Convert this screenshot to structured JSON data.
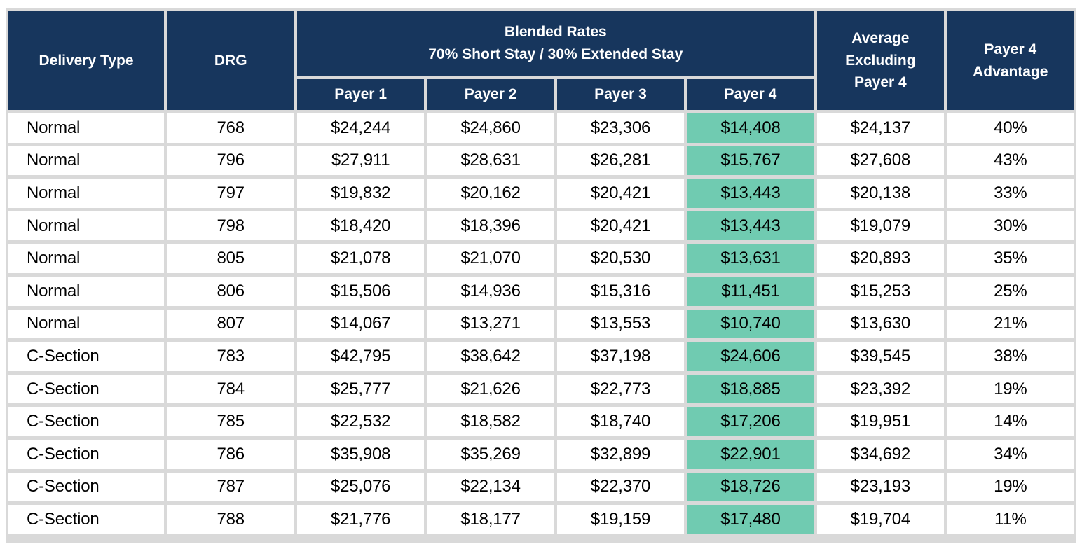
{
  "colors": {
    "header_bg": "#17365D",
    "header_text": "#FFFFFF",
    "payer4_highlight_bg": "#70CBB1",
    "grid_line": "#D9D9D9",
    "cell_bg": "#FFFFFF",
    "cell_text": "#000000"
  },
  "header": {
    "delivery_type": "Delivery Type",
    "drg": "DRG",
    "blended_title": "Blended Rates",
    "blended_subtitle": "70% Short Stay / 30% Extended Stay",
    "payer1": "Payer 1",
    "payer2": "Payer 2",
    "payer3": "Payer 3",
    "payer4": "Payer 4",
    "avg_excluding": "Average Excluding Payer 4",
    "advantage": "Payer 4 Advantage"
  },
  "table": {
    "rows": [
      [
        "Normal",
        "768",
        "$24,244",
        "$24,860",
        "$23,306",
        "$14,408",
        "$24,137",
        "40%"
      ],
      [
        "Normal",
        "796",
        "$27,911",
        "$28,631",
        "$26,281",
        "$15,767",
        "$27,608",
        "43%"
      ],
      [
        "Normal",
        "797",
        "$19,832",
        "$20,162",
        "$20,421",
        "$13,443",
        "$20,138",
        "33%"
      ],
      [
        "Normal",
        "798",
        "$18,420",
        "$18,396",
        "$20,421",
        "$13,443",
        "$19,079",
        "30%"
      ],
      [
        "Normal",
        "805",
        "$21,078",
        "$21,070",
        "$20,530",
        "$13,631",
        "$20,893",
        "35%"
      ],
      [
        "Normal",
        "806",
        "$15,506",
        "$14,936",
        "$15,316",
        "$11,451",
        "$15,253",
        "25%"
      ],
      [
        "Normal",
        "807",
        "$14,067",
        "$13,271",
        "$13,553",
        "$10,740",
        "$13,630",
        "21%"
      ],
      [
        "C-Section",
        "783",
        "$42,795",
        "$38,642",
        "$37,198",
        "$24,606",
        "$39,545",
        "38%"
      ],
      [
        "C-Section",
        "784",
        "$25,777",
        "$21,626",
        "$22,773",
        "$18,885",
        "$23,392",
        "19%"
      ],
      [
        "C-Section",
        "785",
        "$22,532",
        "$18,582",
        "$18,740",
        "$17,206",
        "$19,951",
        "14%"
      ],
      [
        "C-Section",
        "786",
        "$35,908",
        "$35,269",
        "$32,899",
        "$22,901",
        "$34,692",
        "34%"
      ],
      [
        "C-Section",
        "787",
        "$25,076",
        "$22,134",
        "$22,370",
        "$18,726",
        "$23,193",
        "19%"
      ],
      [
        "C-Section",
        "788",
        "$21,776",
        "$18,177",
        "$19,159",
        "$17,480",
        "$19,704",
        "11%"
      ]
    ]
  },
  "chart_data": {
    "type": "table",
    "title": "Blended Rates",
    "subtitle": "70% Short Stay / 30% Extended Stay",
    "columns": [
      "Delivery Type",
      "DRG",
      "Payer 1",
      "Payer 2",
      "Payer 3",
      "Payer 4",
      "Average Excluding Payer 4",
      "Payer 4 Advantage"
    ],
    "rows": [
      {
        "delivery_type": "Normal",
        "drg": 768,
        "payer1": 24244,
        "payer2": 24860,
        "payer3": 23306,
        "payer4": 14408,
        "avg_excluding_payer4": 24137,
        "payer4_advantage_pct": 40
      },
      {
        "delivery_type": "Normal",
        "drg": 796,
        "payer1": 27911,
        "payer2": 28631,
        "payer3": 26281,
        "payer4": 15767,
        "avg_excluding_payer4": 27608,
        "payer4_advantage_pct": 43
      },
      {
        "delivery_type": "Normal",
        "drg": 797,
        "payer1": 19832,
        "payer2": 20162,
        "payer3": 20421,
        "payer4": 13443,
        "avg_excluding_payer4": 20138,
        "payer4_advantage_pct": 33
      },
      {
        "delivery_type": "Normal",
        "drg": 798,
        "payer1": 18420,
        "payer2": 18396,
        "payer3": 20421,
        "payer4": 13443,
        "avg_excluding_payer4": 19079,
        "payer4_advantage_pct": 30
      },
      {
        "delivery_type": "Normal",
        "drg": 805,
        "payer1": 21078,
        "payer2": 21070,
        "payer3": 20530,
        "payer4": 13631,
        "avg_excluding_payer4": 20893,
        "payer4_advantage_pct": 35
      },
      {
        "delivery_type": "Normal",
        "drg": 806,
        "payer1": 15506,
        "payer2": 14936,
        "payer3": 15316,
        "payer4": 11451,
        "avg_excluding_payer4": 15253,
        "payer4_advantage_pct": 25
      },
      {
        "delivery_type": "Normal",
        "drg": 807,
        "payer1": 14067,
        "payer2": 13271,
        "payer3": 13553,
        "payer4": 10740,
        "avg_excluding_payer4": 13630,
        "payer4_advantage_pct": 21
      },
      {
        "delivery_type": "C-Section",
        "drg": 783,
        "payer1": 42795,
        "payer2": 38642,
        "payer3": 37198,
        "payer4": 24606,
        "avg_excluding_payer4": 39545,
        "payer4_advantage_pct": 38
      },
      {
        "delivery_type": "C-Section",
        "drg": 784,
        "payer1": 25777,
        "payer2": 21626,
        "payer3": 22773,
        "payer4": 18885,
        "avg_excluding_payer4": 23392,
        "payer4_advantage_pct": 19
      },
      {
        "delivery_type": "C-Section",
        "drg": 785,
        "payer1": 22532,
        "payer2": 18582,
        "payer3": 18740,
        "payer4": 17206,
        "avg_excluding_payer4": 19951,
        "payer4_advantage_pct": 14
      },
      {
        "delivery_type": "C-Section",
        "drg": 786,
        "payer1": 35908,
        "payer2": 35269,
        "payer3": 32899,
        "payer4": 22901,
        "avg_excluding_payer4": 34692,
        "payer4_advantage_pct": 34
      },
      {
        "delivery_type": "C-Section",
        "drg": 787,
        "payer1": 25076,
        "payer2": 22134,
        "payer3": 22370,
        "payer4": 18726,
        "avg_excluding_payer4": 23193,
        "payer4_advantage_pct": 19
      },
      {
        "delivery_type": "C-Section",
        "drg": 788,
        "payer1": 21776,
        "payer2": 18177,
        "payer3": 19159,
        "payer4": 17480,
        "avg_excluding_payer4": 19704,
        "payer4_advantage_pct": 11
      }
    ]
  }
}
